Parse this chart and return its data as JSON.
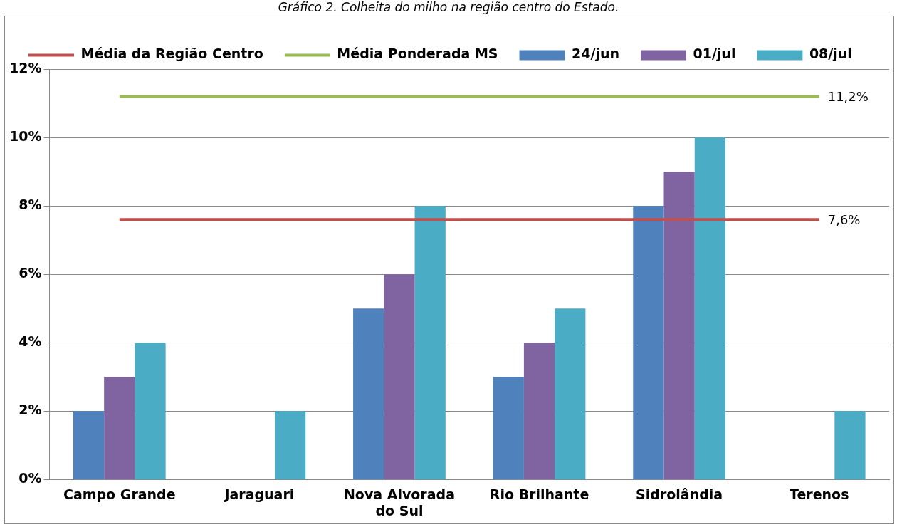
{
  "chart_data": {
    "type": "bar",
    "title": "Gráfico 2. Colheita do milho na região centro do Estado.",
    "categories": [
      "Campo Grande",
      "Jaraguari",
      "Nova Alvorada do Sul",
      "Rio Brilhante",
      "Sidrolândia",
      "Terenos"
    ],
    "series": [
      {
        "name": "24/jun",
        "color": "#4f81bd",
        "values": [
          2,
          null,
          5,
          3,
          8,
          null
        ]
      },
      {
        "name": "01/jul",
        "color": "#8064a2",
        "values": [
          3,
          null,
          6,
          4,
          9,
          null
        ]
      },
      {
        "name": "08/jul",
        "color": "#4bacc6",
        "values": [
          4,
          2,
          8,
          5,
          10,
          2
        ]
      },
      {
        "name": "Média da Região Centro",
        "type": "line",
        "color": "#c0504d",
        "values": [
          7.6,
          7.6,
          7.6,
          7.6,
          7.6,
          7.6
        ],
        "value_labels": [
          null,
          null,
          null,
          null,
          null,
          "7,6%"
        ]
      },
      {
        "name": "Média Ponderada MS",
        "type": "line",
        "color": "#9bbb59",
        "values": [
          11.2,
          11.2,
          11.2,
          11.2,
          11.2,
          11.2
        ],
        "value_labels": [
          null,
          null,
          null,
          null,
          null,
          "11,2%"
        ]
      }
    ],
    "ylim": [
      0,
      12
    ],
    "yticks": [
      {
        "value": 0,
        "label": "0%"
      },
      {
        "value": 2,
        "label": "2%"
      },
      {
        "value": 4,
        "label": "4%"
      },
      {
        "value": 6,
        "label": "6%"
      },
      {
        "value": 8,
        "label": "8%"
      },
      {
        "value": 10,
        "label": "10%"
      },
      {
        "value": 12,
        "label": "12%"
      }
    ],
    "grid": "y",
    "legend": "top",
    "marker": "none",
    "line_style": "solid"
  }
}
